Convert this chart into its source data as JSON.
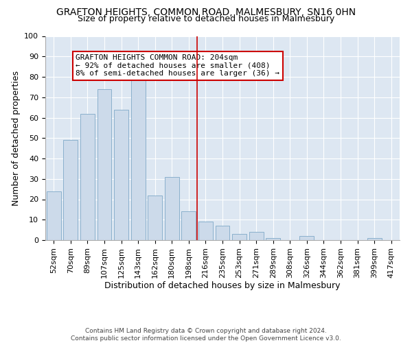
{
  "title": "GRAFTON HEIGHTS, COMMON ROAD, MALMESBURY, SN16 0HN",
  "subtitle": "Size of property relative to detached houses in Malmesbury",
  "xlabel": "Distribution of detached houses by size in Malmesbury",
  "ylabel": "Number of detached properties",
  "bar_labels": [
    "52sqm",
    "70sqm",
    "89sqm",
    "107sqm",
    "125sqm",
    "143sqm",
    "162sqm",
    "180sqm",
    "198sqm",
    "216sqm",
    "235sqm",
    "253sqm",
    "271sqm",
    "289sqm",
    "308sqm",
    "326sqm",
    "344sqm",
    "362sqm",
    "381sqm",
    "399sqm",
    "417sqm"
  ],
  "bar_values": [
    24,
    49,
    62,
    74,
    64,
    79,
    22,
    31,
    14,
    9,
    7,
    3,
    4,
    1,
    0,
    2,
    0,
    0,
    0,
    1,
    0
  ],
  "bar_color": "#ccdaea",
  "bar_edgecolor": "#8ab0cc",
  "vline_x_index": 9,
  "vline_color": "#cc0000",
  "annotation_text": "GRAFTON HEIGHTS COMMON ROAD: 204sqm\n← 92% of detached houses are smaller (408)\n8% of semi-detached houses are larger (36) →",
  "annotation_box_edgecolor": "#cc0000",
  "annotation_box_facecolor": "#ffffff",
  "ylim": [
    0,
    100
  ],
  "yticks": [
    0,
    10,
    20,
    30,
    40,
    50,
    60,
    70,
    80,
    90,
    100
  ],
  "axes_facecolor": "#dde7f2",
  "footer": "Contains HM Land Registry data © Crown copyright and database right 2024.\nContains public sector information licensed under the Open Government Licence v3.0.",
  "title_fontsize": 10,
  "subtitle_fontsize": 9,
  "xlabel_fontsize": 9,
  "ylabel_fontsize": 9,
  "tick_fontsize": 8,
  "annot_fontsize": 8
}
